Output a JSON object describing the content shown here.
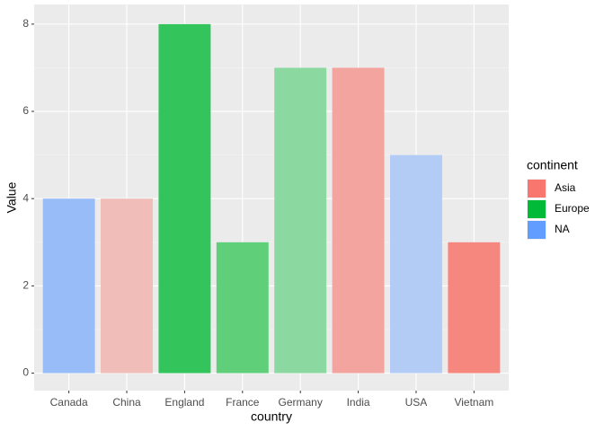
{
  "chart_data": {
    "type": "bar",
    "x_label": "country",
    "y_label": "Value",
    "categories": [
      "Canada",
      "China",
      "England",
      "France",
      "Germany",
      "India",
      "USA",
      "Vietnam"
    ],
    "values": [
      4,
      4,
      8,
      3,
      7,
      7,
      5,
      3
    ],
    "colors": [
      "#98BCF8",
      "#F0BDB9",
      "#33C55B",
      "#5FCF7A",
      "#8BD9A0",
      "#F3A49F",
      "#B3CCF5",
      "#F6877F"
    ],
    "ylim": [
      -0.4,
      8.45
    ],
    "yticks": [
      0,
      2,
      4,
      6,
      8
    ],
    "grid": true,
    "legend": {
      "title": "continent",
      "position": "right",
      "entries": [
        {
          "name": "Asia",
          "color": "#F8766D"
        },
        {
          "name": "Europe",
          "color": "#00BA38"
        },
        {
          "name": "NA",
          "color": "#619CFF"
        }
      ]
    }
  }
}
